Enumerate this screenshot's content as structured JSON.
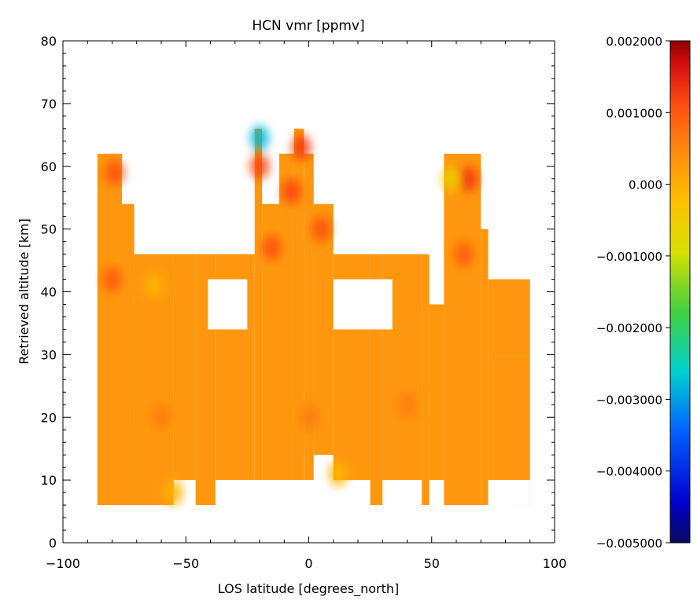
{
  "chart_data": {
    "type": "heatmap",
    "title": "HCN vmr [ppmv]",
    "xlabel": "LOS latitude [degrees_north]",
    "ylabel": "Retrieved altitude [km]",
    "xlim": [
      -100,
      100
    ],
    "ylim": [
      0,
      80
    ],
    "x_ticks": [
      -100,
      -50,
      0,
      50,
      100
    ],
    "y_ticks": [
      0,
      10,
      20,
      30,
      40,
      50,
      60,
      70,
      80
    ],
    "x_tick_labels": [
      "−100",
      "−50",
      "0",
      "50",
      "100"
    ],
    "y_tick_labels": [
      "0",
      "10",
      "20",
      "30",
      "40",
      "50",
      "60",
      "70",
      "80"
    ],
    "colorscale": "rainbow",
    "colorbar": {
      "range": [
        -0.005,
        0.002
      ],
      "ticks": [
        0.002,
        0.001,
        0.0,
        -0.001,
        -0.002,
        -0.003,
        -0.004,
        -0.005
      ],
      "tick_labels": [
        "0.002000",
        "0.001000",
        "0.000",
        "−0.001000",
        "−0.002000",
        "−0.003000",
        "−0.004000",
        "−0.005000"
      ]
    },
    "columns": [
      {
        "lat": [
          -86,
          -80
        ],
        "alt": [
          6,
          62
        ]
      },
      {
        "lat": [
          -80,
          -76
        ],
        "alt": [
          6,
          62
        ]
      },
      {
        "lat": [
          -76,
          -71
        ],
        "alt": [
          6,
          54
        ]
      },
      {
        "lat": [
          -71,
          -55
        ],
        "alt": [
          6,
          46
        ]
      },
      {
        "lat": [
          -55,
          -46
        ],
        "alt": [
          10,
          46
        ]
      },
      {
        "lat": [
          -46,
          -38
        ],
        "alt": [
          6,
          46
        ]
      },
      {
        "lat": [
          -38,
          -22
        ],
        "alt": [
          10,
          46
        ]
      },
      {
        "lat": [
          -22,
          -19
        ],
        "alt": [
          10,
          66
        ]
      },
      {
        "lat": [
          -19,
          -12
        ],
        "alt": [
          10,
          54
        ]
      },
      {
        "lat": [
          -12,
          -6
        ],
        "alt": [
          10,
          62
        ]
      },
      {
        "lat": [
          -6,
          -2
        ],
        "alt": [
          10,
          66
        ]
      },
      {
        "lat": [
          -2,
          2
        ],
        "alt": [
          10,
          62
        ]
      },
      {
        "lat": [
          2,
          10
        ],
        "alt": [
          14,
          54
        ]
      },
      {
        "lat": [
          10,
          25
        ],
        "alt": [
          10,
          46
        ]
      },
      {
        "lat": [
          25,
          30
        ],
        "alt": [
          6,
          46
        ]
      },
      {
        "lat": [
          30,
          46
        ],
        "alt": [
          10,
          46
        ]
      },
      {
        "lat": [
          46,
          49
        ],
        "alt": [
          6,
          46
        ]
      },
      {
        "lat": [
          49,
          55
        ],
        "alt": [
          10,
          38
        ]
      },
      {
        "lat": [
          55,
          64
        ],
        "alt": [
          6,
          62
        ]
      },
      {
        "lat": [
          64,
          70
        ],
        "alt": [
          6,
          62
        ]
      },
      {
        "lat": [
          70,
          73
        ],
        "alt": [
          6,
          50
        ]
      },
      {
        "lat": [
          73,
          84
        ],
        "alt": [
          10,
          30
        ]
      },
      {
        "lat": [
          73,
          90
        ],
        "alt": [
          30,
          42
        ]
      },
      {
        "lat": [
          84,
          90
        ],
        "alt": [
          10,
          30
        ]
      },
      {
        "lat": [
          84,
          90
        ],
        "alt": [
          6,
          10
        ]
      }
    ],
    "gaps": [
      {
        "lat": [
          -41,
          -25
        ],
        "alt": [
          34,
          42
        ]
      },
      {
        "lat": [
          10,
          34
        ],
        "alt": [
          34,
          42
        ]
      },
      {
        "lat": [
          73,
          90
        ],
        "alt": [
          6,
          10
        ]
      }
    ],
    "hotspots": [
      {
        "lat": -79,
        "alt": 59,
        "value": 0.0011
      },
      {
        "lat": -80,
        "alt": 42,
        "value": 0.001
      },
      {
        "lat": -20,
        "alt": 60,
        "value": 0.0012
      },
      {
        "lat": -20,
        "alt": 64.5,
        "value": -0.0028
      },
      {
        "lat": -7,
        "alt": 56,
        "value": 0.0012
      },
      {
        "lat": -3,
        "alt": 63,
        "value": 0.0013
      },
      {
        "lat": 5,
        "alt": 50,
        "value": 0.0011
      },
      {
        "lat": -15,
        "alt": 47,
        "value": 0.0011
      },
      {
        "lat": 65,
        "alt": 58,
        "value": 0.0013
      },
      {
        "lat": 58,
        "alt": 58,
        "value": -0.0006
      },
      {
        "lat": 63,
        "alt": 46,
        "value": 0.001
      },
      {
        "lat": -63,
        "alt": 41,
        "value": -0.0001
      },
      {
        "lat": 12,
        "alt": 11,
        "value": -0.0001
      },
      {
        "lat": -55,
        "alt": 8,
        "value": -0.0001
      },
      {
        "lat": 0,
        "alt": 20,
        "value": 0.0006
      },
      {
        "lat": 40,
        "alt": 22,
        "value": 0.0006
      },
      {
        "lat": -60,
        "alt": 20,
        "value": 0.0006
      }
    ],
    "background_value": 0.0003,
    "grid": false,
    "legend": "colorbar-right"
  }
}
